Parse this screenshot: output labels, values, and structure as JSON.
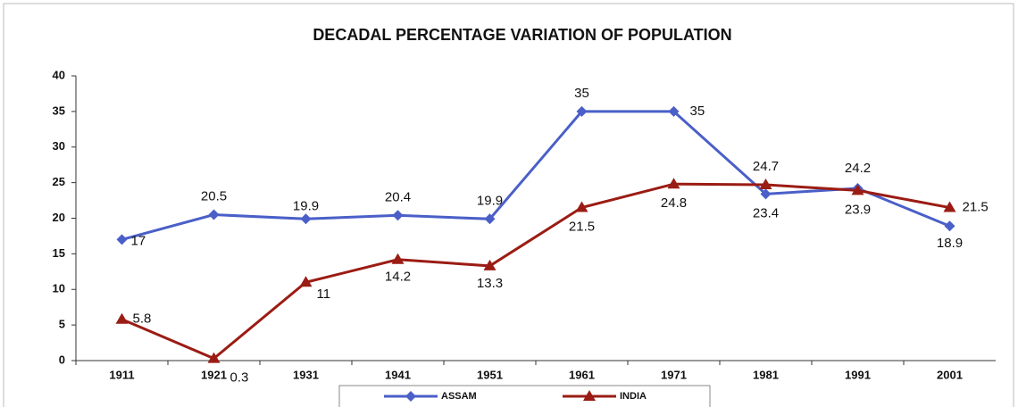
{
  "chart_data": {
    "type": "line",
    "title": "DECADAL PERCENTAGE VARIATION OF POPULATION",
    "categories": [
      "1911",
      "1921",
      "1931",
      "1941",
      "1951",
      "1961",
      "1971",
      "1981",
      "1991",
      "2001"
    ],
    "series": [
      {
        "name": "ASSAM",
        "color": "#4a5fc8",
        "marker": "diamond",
        "values": [
          17,
          20.5,
          19.9,
          20.4,
          19.9,
          35,
          35,
          23.4,
          24.2,
          18.9
        ]
      },
      {
        "name": "INDIA",
        "color": "#9b1c14",
        "marker": "triangle",
        "values": [
          5.8,
          0.3,
          11,
          14.2,
          13.3,
          21.5,
          24.8,
          24.7,
          23.9,
          21.5
        ]
      }
    ],
    "ylim": [
      0,
      40
    ],
    "yticks": [
      0,
      5,
      10,
      15,
      20,
      25,
      30,
      35,
      40
    ],
    "legend": "bottom"
  }
}
